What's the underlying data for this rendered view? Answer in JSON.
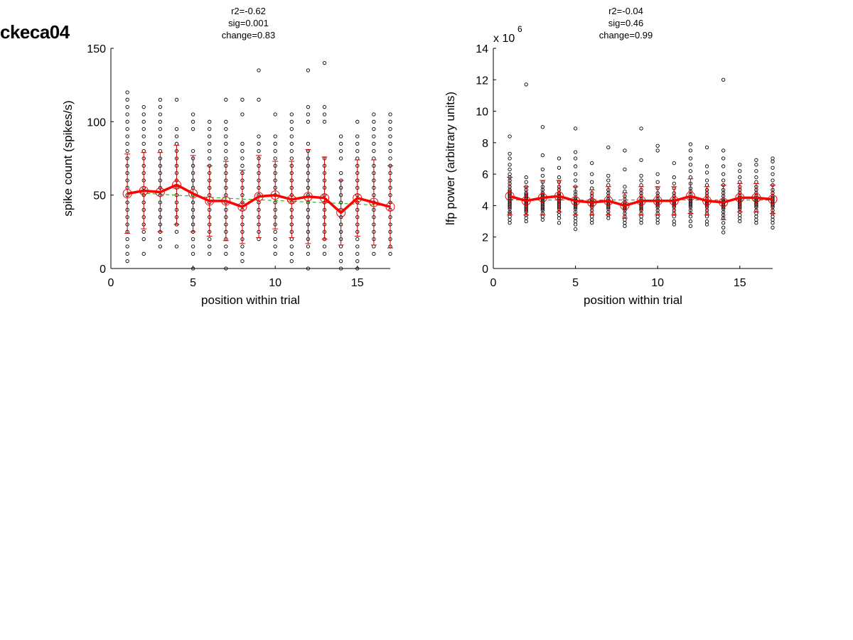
{
  "figure_title": "ckeca04",
  "colors": {
    "points": "#000000",
    "mean_line": "#ff0000",
    "error_bars": "#cc0000",
    "mean_marker": "#ff0000",
    "fit_line": "#00aa00"
  },
  "chart_data": [
    {
      "type": "scatter",
      "title_lines": [
        "r2=-0.62",
        "sig=0.001",
        "change=0.83"
      ],
      "xlabel": "position within trial",
      "ylabel": "spike count (spikes/s)",
      "xlim": [
        0,
        17
      ],
      "ylim": [
        0,
        150
      ],
      "xticks": [
        0,
        5,
        10,
        15
      ],
      "yticks": [
        0,
        50,
        100,
        150
      ],
      "axis_multiplier": "",
      "grid": false,
      "x": [
        1,
        2,
        3,
        4,
        5,
        6,
        7,
        8,
        9,
        10,
        11,
        12,
        13,
        14,
        15,
        16,
        17
      ],
      "mean": [
        51,
        53,
        52,
        57,
        51,
        46,
        46,
        42,
        49,
        50,
        47,
        49,
        48,
        38,
        48,
        45,
        42
      ],
      "sd": [
        27,
        26,
        27,
        27,
        26,
        24,
        27,
        25,
        28,
        23,
        26,
        32,
        28,
        22,
        26,
        29,
        28
      ],
      "fit": [
        52,
        51.3,
        50.6,
        49.9,
        49.2,
        48.5,
        47.9,
        47.3,
        46.8,
        46.3,
        45.8,
        45.3,
        44.8,
        44.3,
        43.8,
        43.3,
        42.8
      ],
      "scatter": [
        [
          5,
          10,
          15,
          20,
          25,
          30,
          35,
          40,
          45,
          50,
          55,
          60,
          65,
          70,
          75,
          80,
          85,
          90,
          95,
          100,
          105,
          110,
          115,
          120
        ],
        [
          10,
          20,
          25,
          30,
          35,
          40,
          45,
          50,
          55,
          60,
          65,
          70,
          75,
          80,
          85,
          90,
          95,
          100,
          105,
          110
        ],
        [
          15,
          20,
          25,
          30,
          35,
          40,
          45,
          50,
          55,
          60,
          65,
          70,
          75,
          80,
          85,
          90,
          95,
          100,
          105,
          110,
          115
        ],
        [
          15,
          25,
          30,
          35,
          40,
          45,
          50,
          55,
          60,
          65,
          70,
          75,
          80,
          85,
          90,
          95,
          115
        ],
        [
          0,
          10,
          15,
          20,
          25,
          30,
          35,
          40,
          45,
          50,
          55,
          60,
          65,
          70,
          75,
          80,
          95,
          100,
          105
        ],
        [
          10,
          15,
          20,
          25,
          30,
          35,
          40,
          45,
          50,
          55,
          60,
          65,
          70,
          75,
          80,
          85,
          90,
          95,
          100
        ],
        [
          0,
          10,
          15,
          20,
          25,
          30,
          35,
          40,
          45,
          50,
          55,
          60,
          65,
          70,
          75,
          80,
          85,
          90,
          95,
          100,
          115
        ],
        [
          5,
          10,
          15,
          20,
          25,
          30,
          35,
          40,
          45,
          50,
          55,
          60,
          65,
          70,
          75,
          80,
          85,
          105,
          115
        ],
        [
          20,
          25,
          30,
          35,
          40,
          45,
          50,
          55,
          60,
          65,
          70,
          75,
          80,
          85,
          90,
          115,
          135
        ],
        [
          10,
          15,
          20,
          25,
          30,
          35,
          40,
          45,
          50,
          55,
          60,
          65,
          70,
          75,
          80,
          85,
          90,
          105
        ],
        [
          5,
          10,
          15,
          20,
          25,
          30,
          35,
          40,
          45,
          50,
          55,
          60,
          65,
          70,
          75,
          80,
          85,
          90,
          95,
          100,
          105
        ],
        [
          0,
          10,
          15,
          20,
          25,
          30,
          35,
          40,
          45,
          50,
          55,
          60,
          65,
          70,
          75,
          80,
          85,
          100,
          105,
          110,
          135
        ],
        [
          10,
          15,
          20,
          25,
          30,
          35,
          40,
          45,
          50,
          55,
          60,
          65,
          70,
          75,
          100,
          105,
          110,
          140
        ],
        [
          0,
          5,
          10,
          15,
          20,
          25,
          30,
          35,
          40,
          45,
          50,
          55,
          60,
          65,
          75,
          80,
          85,
          90
        ],
        [
          0,
          5,
          10,
          15,
          20,
          25,
          30,
          35,
          40,
          45,
          50,
          55,
          60,
          65,
          70,
          75,
          80,
          85,
          90,
          100
        ],
        [
          10,
          15,
          20,
          25,
          30,
          35,
          40,
          45,
          50,
          55,
          60,
          65,
          70,
          75,
          80,
          85,
          90,
          95,
          100,
          105
        ],
        [
          10,
          15,
          20,
          25,
          30,
          35,
          40,
          45,
          50,
          55,
          60,
          65,
          70,
          75,
          80,
          85,
          90,
          95,
          100,
          105
        ]
      ]
    },
    {
      "type": "scatter",
      "title_lines": [
        "r2=-0.04",
        "sig=0.46",
        "change=0.99"
      ],
      "xlabel": "position within trial",
      "ylabel": "lfp power (arbitrary units)",
      "xlim": [
        0,
        17
      ],
      "ylim": [
        0,
        14
      ],
      "xticks": [
        0,
        5,
        10,
        15
      ],
      "yticks": [
        0,
        2,
        4,
        6,
        8,
        10,
        12,
        14
      ],
      "axis_multiplier": "x 10",
      "axis_multiplier_exp": "6",
      "grid": false,
      "x": [
        1,
        2,
        3,
        4,
        5,
        6,
        7,
        8,
        9,
        10,
        11,
        12,
        13,
        14,
        15,
        16,
        17
      ],
      "mean": [
        4.6,
        4.3,
        4.5,
        4.6,
        4.3,
        4.2,
        4.3,
        4.0,
        4.3,
        4.3,
        4.3,
        4.6,
        4.3,
        4.2,
        4.5,
        4.5,
        4.4
      ],
      "sd": [
        1.2,
        0.9,
        1.1,
        1.0,
        0.9,
        0.8,
        0.9,
        0.8,
        0.9,
        0.9,
        0.9,
        1.1,
        0.9,
        1.1,
        0.9,
        0.9,
        0.9
      ],
      "fit": [
        4.35,
        4.35,
        4.35,
        4.35,
        4.35,
        4.35,
        4.35,
        4.35,
        4.35,
        4.35,
        4.35,
        4.35,
        4.35,
        4.35,
        4.35,
        4.35,
        4.35
      ],
      "scatter": [
        [
          2.9,
          3.1,
          3.3,
          3.5,
          3.6,
          3.8,
          3.9,
          4.0,
          4.1,
          4.2,
          4.3,
          4.4,
          4.5,
          4.6,
          4.7,
          4.8,
          4.9,
          5.0,
          5.2,
          5.4,
          5.6,
          5.8,
          6.0,
          6.3,
          6.6,
          7.0,
          7.3,
          8.4
        ],
        [
          3.0,
          3.2,
          3.4,
          3.6,
          3.7,
          3.8,
          3.9,
          4.0,
          4.1,
          4.2,
          4.3,
          4.4,
          4.5,
          4.6,
          4.7,
          4.8,
          5.0,
          5.2,
          5.5,
          5.8,
          11.7
        ],
        [
          3.1,
          3.3,
          3.5,
          3.7,
          3.8,
          3.9,
          4.0,
          4.1,
          4.2,
          4.3,
          4.4,
          4.5,
          4.6,
          4.7,
          4.8,
          5.0,
          5.2,
          5.5,
          5.9,
          6.3,
          7.2,
          9.0
        ],
        [
          2.9,
          3.2,
          3.4,
          3.6,
          3.8,
          3.9,
          4.0,
          4.1,
          4.2,
          4.3,
          4.4,
          4.5,
          4.6,
          4.7,
          4.8,
          5.0,
          5.2,
          5.5,
          5.8,
          6.4,
          7.0
        ],
        [
          2.5,
          2.8,
          3.0,
          3.2,
          3.4,
          3.6,
          3.8,
          3.9,
          4.0,
          4.1,
          4.2,
          4.3,
          4.4,
          4.5,
          4.7,
          4.9,
          5.2,
          5.6,
          6.0,
          6.5,
          7.0,
          7.4,
          8.9
        ],
        [
          2.9,
          3.1,
          3.3,
          3.5,
          3.7,
          3.9,
          4.0,
          4.1,
          4.2,
          4.3,
          4.4,
          4.6,
          4.8,
          5.1,
          5.5,
          6.0,
          6.7
        ],
        [
          3.2,
          3.4,
          3.6,
          3.8,
          3.9,
          4.0,
          4.1,
          4.2,
          4.3,
          4.4,
          4.6,
          4.8,
          5.0,
          5.3,
          5.6,
          5.9,
          7.7
        ],
        [
          2.7,
          2.9,
          3.1,
          3.3,
          3.5,
          3.7,
          3.8,
          3.9,
          4.0,
          4.1,
          4.2,
          4.4,
          4.6,
          4.9,
          5.2,
          6.3,
          7.5
        ],
        [
          2.9,
          3.1,
          3.3,
          3.5,
          3.7,
          3.8,
          3.9,
          4.0,
          4.1,
          4.2,
          4.3,
          4.4,
          4.6,
          4.8,
          5.0,
          5.3,
          5.6,
          5.9,
          6.9,
          8.9
        ],
        [
          2.9,
          3.1,
          3.3,
          3.5,
          3.7,
          3.9,
          4.0,
          4.1,
          4.2,
          4.3,
          4.4,
          4.6,
          4.8,
          5.1,
          5.5,
          6.0,
          7.5,
          7.8
        ],
        [
          2.8,
          3.0,
          3.3,
          3.5,
          3.7,
          3.9,
          4.0,
          4.1,
          4.2,
          4.3,
          4.4,
          4.6,
          4.8,
          5.1,
          5.4,
          5.8,
          6.7
        ],
        [
          2.7,
          3.0,
          3.3,
          3.5,
          3.7,
          3.9,
          4.0,
          4.1,
          4.2,
          4.3,
          4.4,
          4.5,
          4.7,
          4.9,
          5.1,
          5.4,
          5.8,
          6.2,
          6.6,
          7.0,
          7.5,
          7.9
        ],
        [
          2.8,
          3.0,
          3.3,
          3.5,
          3.7,
          3.9,
          4.0,
          4.1,
          4.2,
          4.3,
          4.4,
          4.6,
          4.8,
          5.0,
          5.3,
          5.6,
          6.1,
          6.5,
          7.7
        ],
        [
          2.3,
          2.6,
          2.9,
          3.2,
          3.4,
          3.6,
          3.8,
          3.9,
          4.0,
          4.1,
          4.2,
          4.3,
          4.4,
          4.6,
          4.8,
          5.0,
          5.3,
          5.6,
          6.0,
          6.5,
          7.0,
          7.5,
          12.0
        ],
        [
          3.0,
          3.2,
          3.4,
          3.6,
          3.8,
          3.9,
          4.0,
          4.1,
          4.2,
          4.3,
          4.4,
          4.5,
          4.6,
          4.8,
          5.0,
          5.2,
          5.5,
          5.8,
          6.2,
          6.6
        ],
        [
          2.9,
          3.1,
          3.3,
          3.5,
          3.7,
          3.9,
          4.0,
          4.1,
          4.2,
          4.3,
          4.4,
          4.5,
          4.6,
          4.8,
          5.0,
          5.2,
          5.5,
          5.8,
          6.2,
          6.6,
          6.9
        ],
        [
          2.6,
          2.9,
          3.1,
          3.3,
          3.5,
          3.7,
          3.9,
          4.0,
          4.1,
          4.2,
          4.3,
          4.4,
          4.5,
          4.6,
          4.8,
          5.0,
          5.3,
          5.6,
          6.0,
          6.4,
          6.8,
          7.0
        ]
      ]
    }
  ]
}
